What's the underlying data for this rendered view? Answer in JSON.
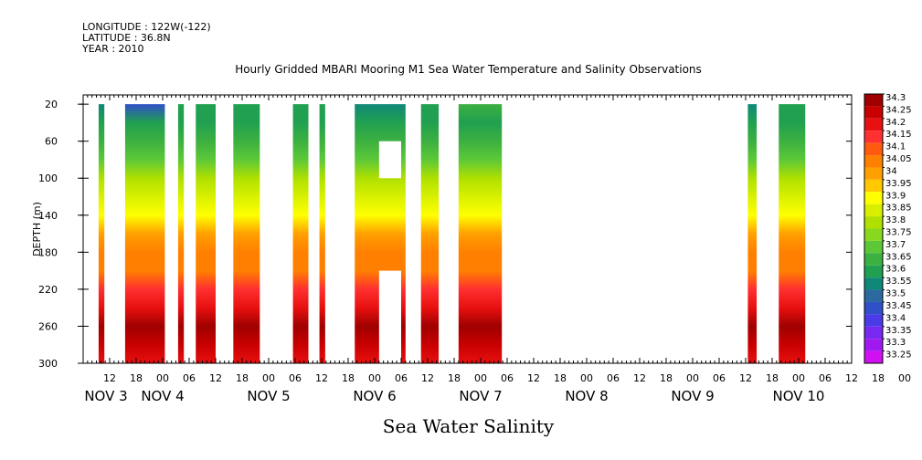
{
  "header": {
    "longitude": "LONGITUDE : 122W(-122)",
    "latitude": "LATITUDE : 36.8N",
    "year": "YEAR : 2010"
  },
  "chart_data": {
    "type": "heatmap",
    "title": "Hourly Gridded MBARI Mooring M1 Sea Water Temperature and Salinity Observations",
    "subtitle": "Sea Water Salinity",
    "ylabel": "DEPTH (m)",
    "xlabel": "",
    "xlim_hours": [
      0,
      174
    ],
    "ylim": [
      300,
      10
    ],
    "y_reversed": true,
    "y_ticks": [
      20,
      60,
      100,
      140,
      180,
      220,
      260,
      300
    ],
    "x_hour_ticks": [
      "12",
      "18",
      "00",
      "06",
      "12",
      "18",
      "00",
      "06",
      "12",
      "18",
      "00",
      "06",
      "12",
      "18",
      "00",
      "06",
      "12",
      "18",
      "00",
      "06",
      "12",
      "18",
      "00",
      "06",
      "12",
      "18",
      "00",
      "06",
      "12",
      "18",
      "00",
      "06"
    ],
    "x_day_labels": [
      "NOV  3",
      "NOV  4",
      "NOV  5",
      "NOV  6",
      "NOV  7",
      "NOV  8",
      "NOV  9",
      "NOV 10"
    ],
    "colorbar": {
      "labels": [
        "34.3",
        "34.25",
        "34.2",
        "34.15",
        "34.1",
        "34.05",
        "34",
        "33.95",
        "33.9",
        "33.85",
        "33.8",
        "33.75",
        "33.7",
        "33.65",
        "33.6",
        "33.55",
        "33.5",
        "33.45",
        "33.4",
        "33.35",
        "33.3",
        "33.25"
      ],
      "colors": [
        "#a00000",
        "#c80000",
        "#e81010",
        "#ff3030",
        "#ff5a10",
        "#ff8000",
        "#ffa000",
        "#ffc800",
        "#ffff00",
        "#d8f000",
        "#b0e000",
        "#88d820",
        "#5cc838",
        "#3cb040",
        "#20a050",
        "#108878",
        "#2a6aa0",
        "#3050c8",
        "#4a3ae8",
        "#7828f0",
        "#a018f0",
        "#d010f0"
      ]
    },
    "data_segments_hours": [
      {
        "start": 3.5,
        "end": 4.8,
        "top_salinity": 33.55
      },
      {
        "start": 9.5,
        "end": 18.5,
        "top_salinity": 33.45
      },
      {
        "start": 21.5,
        "end": 22.8,
        "top_salinity": 33.6
      },
      {
        "start": 25.5,
        "end": 30.0,
        "top_salinity": 33.6
      },
      {
        "start": 34.0,
        "end": 40.0,
        "top_salinity": 33.6
      },
      {
        "start": 47.5,
        "end": 51.0,
        "top_salinity": 33.6
      },
      {
        "start": 53.5,
        "end": 54.8,
        "top_salinity": 33.6
      },
      {
        "start": 61.5,
        "end": 73.0,
        "top_salinity": 33.55
      },
      {
        "start": 76.5,
        "end": 80.5,
        "top_salinity": 33.6
      },
      {
        "start": 85.0,
        "end": 94.8,
        "top_salinity": 33.65
      },
      {
        "start": 150.5,
        "end": 152.5,
        "top_salinity": 33.55
      },
      {
        "start": 157.5,
        "end": 163.5,
        "top_salinity": 33.6
      }
    ],
    "data_gaps": [
      {
        "start_hour": 67.0,
        "end_hour": 72.0,
        "depth_top": 60,
        "depth_bottom": 100
      },
      {
        "start_hour": 67.0,
        "end_hour": 72.0,
        "depth_top": 200,
        "depth_bottom": 300
      }
    ]
  }
}
